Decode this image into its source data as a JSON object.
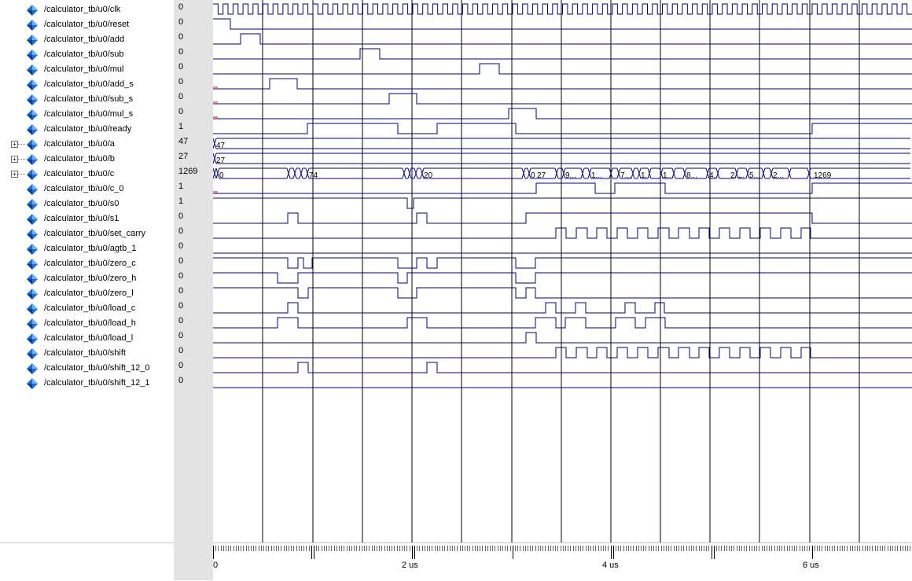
{
  "signals": [
    {
      "name": "/calculator_tb/u0/clk",
      "value": "0",
      "kind": "bit"
    },
    {
      "name": "/calculator_tb/u0/reset",
      "value": "0",
      "kind": "bit"
    },
    {
      "name": "/calculator_tb/u0/add",
      "value": "0",
      "kind": "bit"
    },
    {
      "name": "/calculator_tb/u0/sub",
      "value": "0",
      "kind": "bit"
    },
    {
      "name": "/calculator_tb/u0/mul",
      "value": "0",
      "kind": "bit"
    },
    {
      "name": "/calculator_tb/u0/add_s",
      "value": "0",
      "kind": "bit"
    },
    {
      "name": "/calculator_tb/u0/sub_s",
      "value": "0",
      "kind": "bit"
    },
    {
      "name": "/calculator_tb/u0/mul_s",
      "value": "0",
      "kind": "bit"
    },
    {
      "name": "/calculator_tb/u0/ready",
      "value": "1",
      "kind": "bit"
    },
    {
      "name": "/calculator_tb/u0/a",
      "value": "47",
      "kind": "bus"
    },
    {
      "name": "/calculator_tb/u0/b",
      "value": "27",
      "kind": "bus"
    },
    {
      "name": "/calculator_tb/u0/c",
      "value": "1269",
      "kind": "bus"
    },
    {
      "name": "/calculator_tb/u0/c_0",
      "value": "1",
      "kind": "bit"
    },
    {
      "name": "/calculator_tb/u0/s0",
      "value": "1",
      "kind": "bit"
    },
    {
      "name": "/calculator_tb/u0/s1",
      "value": "0",
      "kind": "bit"
    },
    {
      "name": "/calculator_tb/u0/set_carry",
      "value": "0",
      "kind": "bit"
    },
    {
      "name": "/calculator_tb/u0/agtb_1",
      "value": "0",
      "kind": "bit"
    },
    {
      "name": "/calculator_tb/u0/zero_c",
      "value": "0",
      "kind": "bit"
    },
    {
      "name": "/calculator_tb/u0/zero_h",
      "value": "0",
      "kind": "bit"
    },
    {
      "name": "/calculator_tb/u0/zero_l",
      "value": "0",
      "kind": "bit"
    },
    {
      "name": "/calculator_tb/u0/load_c",
      "value": "0",
      "kind": "bit"
    },
    {
      "name": "/calculator_tb/u0/load_h",
      "value": "0",
      "kind": "bit"
    },
    {
      "name": "/calculator_tb/u0/load_l",
      "value": "0",
      "kind": "bit"
    },
    {
      "name": "/calculator_tb/u0/shift",
      "value": "0",
      "kind": "bit"
    },
    {
      "name": "/calculator_tb/u0/shift_12_0",
      "value": "0",
      "kind": "bit"
    },
    {
      "name": "/calculator_tb/u0/shift_12_1",
      "value": "0",
      "kind": "bit"
    }
  ],
  "bus_labels": {
    "a": "47",
    "b": "27",
    "c": [
      "0",
      "74",
      "20",
      "0",
      "27",
      "9...",
      "1...",
      "7...",
      "1...",
      "1...",
      "8...",
      "4...",
      "2...",
      "...",
      "5...",
      "2...",
      "1269"
    ]
  },
  "timeline": {
    "labels": [
      "0",
      "2 us",
      "4 us",
      "6 us"
    ]
  },
  "colors": {
    "wave": "#000080",
    "grid": "#000000",
    "value_panel": "#e3e3e3",
    "diamond": "#1a6fe0",
    "uninit": "#ff0000"
  }
}
